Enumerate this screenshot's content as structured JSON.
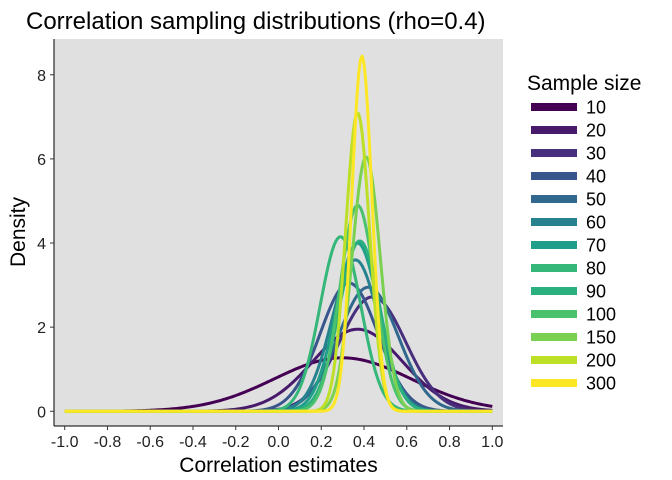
{
  "chart_data": {
    "type": "line",
    "title": "Correlation sampling distributions (rho=0.4)",
    "xlabel": "Correlation estimates",
    "ylabel": "Density",
    "xlim": [
      -1.05,
      1.05
    ],
    "ylim": [
      -0.35,
      8.85
    ],
    "x_ticks": [
      -1.0,
      -0.8,
      -0.6,
      -0.4,
      -0.2,
      0.0,
      0.2,
      0.4,
      0.6,
      0.8,
      1.0
    ],
    "x_tick_labels": [
      "-1.0",
      "-0.8",
      "-0.6",
      "-0.4",
      "-0.2",
      "0.0",
      "0.2",
      "0.4",
      "0.6",
      "0.8",
      "1.0"
    ],
    "y_ticks": [
      0,
      2,
      4,
      6,
      8
    ],
    "y_tick_labels": [
      "0",
      "2",
      "4",
      "6",
      "8"
    ],
    "legend_title": "Sample size",
    "legend_position": "right",
    "grid": false,
    "panel_background": "#e0e0e0",
    "series": [
      {
        "name": "10",
        "color": "#440154",
        "peak_x": 0.3,
        "peak_y": 1.27,
        "width": 0.32
      },
      {
        "name": "20",
        "color": "#481a6c",
        "peak_x": 0.37,
        "peak_y": 1.95,
        "width": 0.21
      },
      {
        "name": "30",
        "color": "#472f7d",
        "peak_x": 0.44,
        "peak_y": 2.72,
        "width": 0.155
      },
      {
        "name": "40",
        "color": "#39568c",
        "peak_x": 0.33,
        "peak_y": 3.05,
        "width": 0.135
      },
      {
        "name": "50",
        "color": "#31688e",
        "peak_x": 0.42,
        "peak_y": 2.95,
        "width": 0.14
      },
      {
        "name": "60",
        "color": "#26828e",
        "peak_x": 0.36,
        "peak_y": 3.6,
        "width": 0.11
      },
      {
        "name": "70",
        "color": "#1f9e89",
        "peak_x": 0.37,
        "peak_y": 4.0,
        "width": 0.1
      },
      {
        "name": "80",
        "color": "#35b779",
        "peak_x": 0.29,
        "peak_y": 4.15,
        "width": 0.095
      },
      {
        "name": "90",
        "color": "#2ab07f",
        "peak_x": 0.38,
        "peak_y": 4.05,
        "width": 0.095
      },
      {
        "name": "100",
        "color": "#4ac16d",
        "peak_x": 0.37,
        "peak_y": 4.9,
        "width": 0.082
      },
      {
        "name": "150",
        "color": "#7ad151",
        "peak_x": 0.41,
        "peak_y": 6.05,
        "width": 0.066
      },
      {
        "name": "200",
        "color": "#bddf26",
        "peak_x": 0.37,
        "peak_y": 7.1,
        "width": 0.056
      },
      {
        "name": "300",
        "color": "#fde725",
        "peak_x": 0.39,
        "peak_y": 8.45,
        "width": 0.047
      }
    ]
  }
}
